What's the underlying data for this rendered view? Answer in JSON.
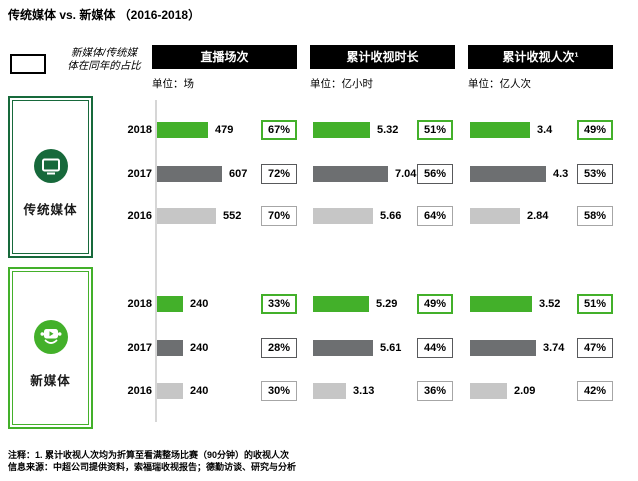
{
  "title": "传统媒体 vs. 新媒体 （2016-2018）",
  "legend": {
    "line1": "新媒体/传统媒",
    "line2": "体在同年的占比"
  },
  "columns": [
    {
      "header": "直播场次",
      "unit": "单位：场"
    },
    {
      "header": "累计收视时长",
      "unit": "单位：亿小时"
    },
    {
      "header": "累计收视人次¹",
      "unit": "单位：亿人次"
    }
  ],
  "footnotes": {
    "note": "注释：1. 累计收视人次均为折算至看满整场比赛（90分钟）的收视人次",
    "source": "信息来源：中超公司提供资料，索福瑞收视报告；德勤访谈、研究与分析"
  },
  "colors": {
    "green_2018": "#43b02a",
    "dark_gray_2017": "#6d6f71",
    "light_gray_2016": "#c6c6c6",
    "dark_green_traditional": "#17693b",
    "header_bg": "#000000",
    "axis_line": "#d6d6d6"
  },
  "chart_data": {
    "type": "bar",
    "orientation": "horizontal",
    "title": "传统媒体 vs. 新媒体 （2016-2018）",
    "share_legend": "新媒体/传统媒体在同年的占比",
    "metrics": [
      {
        "name": "直播场次",
        "unit": "场",
        "axis_max": 607
      },
      {
        "name": "累计收视时长",
        "unit": "亿小时",
        "axis_max": 7.04
      },
      {
        "name": "累计收视人次",
        "unit": "亿人次",
        "axis_max": 4.3,
        "footnote": "1"
      }
    ],
    "year_colors": {
      "2018": "#43b02a",
      "2017": "#6d6f71",
      "2016": "#c6c6c6"
    },
    "groups": [
      {
        "name": "传统媒体",
        "icon": "tv-icon",
        "rows": [
          {
            "year": "2018",
            "values": [
              "479",
              "5.32",
              "3.4"
            ],
            "shares": [
              "67%",
              "51%",
              "49%"
            ]
          },
          {
            "year": "2017",
            "values": [
              "607",
              "7.04",
              "4.3"
            ],
            "shares": [
              "72%",
              "56%",
              "53%"
            ]
          },
          {
            "year": "2016",
            "values": [
              "552",
              "5.66",
              "2.84"
            ],
            "shares": [
              "70%",
              "64%",
              "58%"
            ]
          }
        ]
      },
      {
        "name": "新媒体",
        "icon": "media-person-icon",
        "rows": [
          {
            "year": "2018",
            "values": [
              "240",
              "5.29",
              "3.52"
            ],
            "shares": [
              "33%",
              "49%",
              "51%"
            ]
          },
          {
            "year": "2017",
            "values": [
              "240",
              "5.61",
              "3.74"
            ],
            "shares": [
              "28%",
              "44%",
              "47%"
            ]
          },
          {
            "year": "2016",
            "values": [
              "240",
              "3.13",
              "2.09"
            ],
            "shares": [
              "30%",
              "36%",
              "42%"
            ]
          }
        ]
      }
    ]
  }
}
